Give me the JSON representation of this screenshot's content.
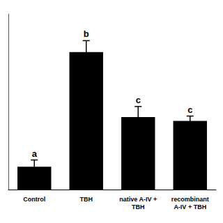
{
  "chart_data": {
    "type": "bar",
    "categories": [
      "Control",
      "TBH",
      "native A-IV +\nTBH",
      "recombinant\nA-IV + TBH"
    ],
    "values": [
      0.12,
      0.72,
      0.38,
      0.36
    ],
    "errors": [
      0.035,
      0.06,
      0.055,
      0.025
    ],
    "annotations": [
      "a",
      "b",
      "c",
      "c"
    ],
    "color": "#000000",
    "ylim": [
      0,
      0.92
    ],
    "yticks": [],
    "grid": false,
    "tick_labels": "x"
  }
}
